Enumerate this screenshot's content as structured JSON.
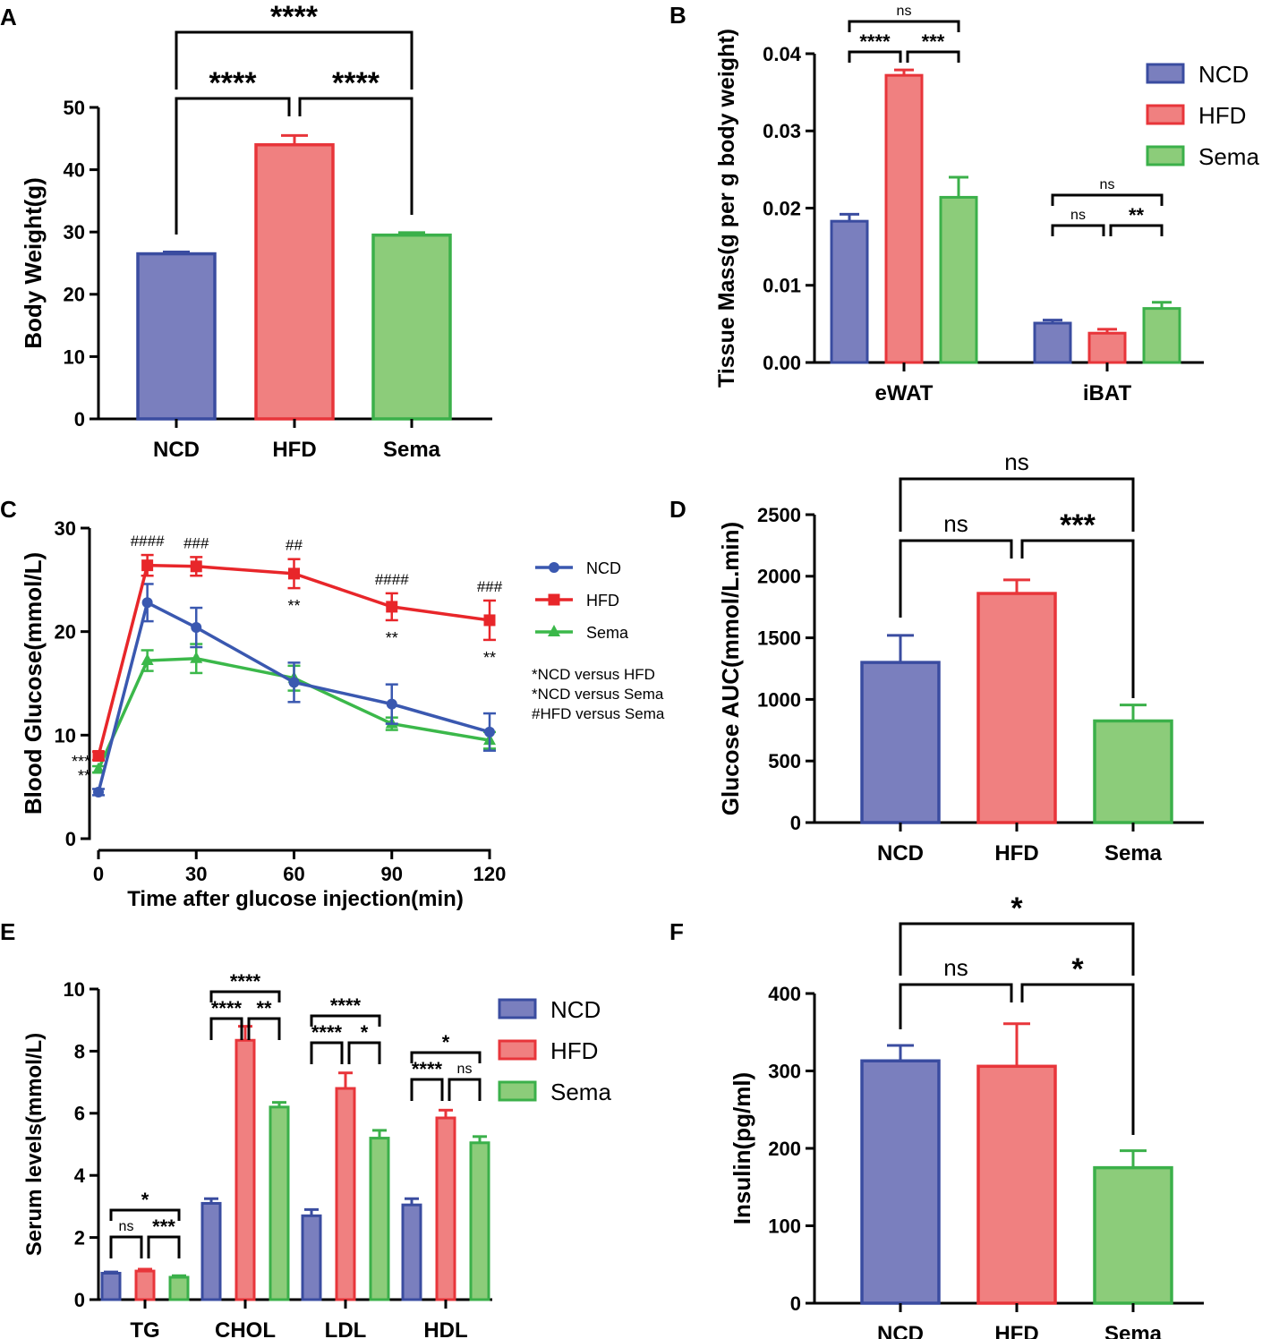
{
  "colors": {
    "NCD": {
      "fill": "#7a7fbe",
      "stroke": "#3a4ca0"
    },
    "HFD": {
      "fill": "#f08080",
      "stroke": "#e8353a"
    },
    "Sema": {
      "fill": "#8ccc7a",
      "stroke": "#3bb04a"
    },
    "line_NCD": "#3a58b0",
    "line_HFD": "#e8262a",
    "line_Sema": "#3bb84a",
    "axis": "#000000"
  },
  "chart_data": [
    {
      "panel": "A",
      "type": "bar",
      "ylabel": "Body Weight(g)",
      "categories": [
        "NCD",
        "HFD",
        "Sema"
      ],
      "values": [
        26.5,
        44.0,
        29.5
      ],
      "errors": [
        0.3,
        1.5,
        0.4
      ],
      "ylim": [
        0,
        50
      ],
      "yticks": [
        "0",
        "10",
        "20",
        "30",
        "40",
        "50"
      ],
      "significance": [
        {
          "from": "NCD",
          "to": "HFD",
          "label": "****",
          "level": 1
        },
        {
          "from": "HFD",
          "to": "Sema",
          "label": "****",
          "level": 1
        },
        {
          "from": "NCD",
          "to": "Sema",
          "label": "****",
          "level": 2
        }
      ]
    },
    {
      "panel": "B",
      "type": "bar",
      "ylabel": "Tissue Mass(g per g body weight)",
      "groups": [
        "eWAT",
        "iBAT"
      ],
      "legend": [
        "NCD",
        "HFD",
        "Sema"
      ],
      "series": [
        {
          "name": "NCD",
          "values": [
            0.0183,
            0.0051
          ],
          "errors": [
            0.0009,
            0.0004
          ]
        },
        {
          "name": "HFD",
          "values": [
            0.0372,
            0.0038
          ],
          "errors": [
            0.0007,
            0.0005
          ]
        },
        {
          "name": "Sema",
          "values": [
            0.0214,
            0.007
          ],
          "errors": [
            0.0026,
            0.0008
          ]
        }
      ],
      "ylim": [
        0,
        0.04
      ],
      "yticks": [
        "0.00",
        "0.01",
        "0.02",
        "0.03",
        "0.04"
      ],
      "significance": [
        {
          "group": "eWAT",
          "from": "NCD",
          "to": "HFD",
          "label": "****",
          "level": 1
        },
        {
          "group": "eWAT",
          "from": "HFD",
          "to": "Sema",
          "label": "***",
          "level": 1
        },
        {
          "group": "eWAT",
          "from": "NCD",
          "to": "Sema",
          "label": "ns",
          "level": 2
        },
        {
          "group": "iBAT",
          "from": "NCD",
          "to": "HFD",
          "label": "ns",
          "level": 1
        },
        {
          "group": "iBAT",
          "from": "HFD",
          "to": "Sema",
          "label": "**",
          "level": 1
        },
        {
          "group": "iBAT",
          "from": "NCD",
          "to": "Sema",
          "label": "ns",
          "level": 2
        }
      ]
    },
    {
      "panel": "C",
      "type": "line",
      "xlabel": "Time after glucose injection(min)",
      "ylabel": "Blood Glucose(mmol/L)",
      "x": [
        0,
        15,
        30,
        60,
        90,
        120
      ],
      "series": [
        {
          "name": "NCD",
          "marker": "circle",
          "values": [
            4.5,
            22.8,
            20.4,
            15.1,
            13.0,
            10.3
          ],
          "errors": [
            0.3,
            1.8,
            1.9,
            1.9,
            1.9,
            1.8
          ]
        },
        {
          "name": "HFD",
          "marker": "square",
          "values": [
            8.0,
            26.4,
            26.3,
            25.6,
            22.4,
            21.1
          ],
          "errors": [
            0.4,
            1.0,
            0.9,
            1.4,
            1.3,
            1.9
          ]
        },
        {
          "name": "Sema",
          "marker": "triangle",
          "values": [
            6.7,
            17.2,
            17.4,
            15.5,
            11.1,
            9.5
          ],
          "errors": [
            0.3,
            1.0,
            1.4,
            1.2,
            0.6,
            0.8
          ]
        }
      ],
      "xlim": [
        0,
        120
      ],
      "xticks": [
        "0",
        "30",
        "60",
        "90",
        "120"
      ],
      "ylim": [
        0,
        30
      ],
      "yticks": [
        "0",
        "10",
        "20",
        "30"
      ],
      "annotations_hash": [
        {
          "x": 15,
          "label": "####"
        },
        {
          "x": 30,
          "label": "###"
        },
        {
          "x": 60,
          "label": "##"
        },
        {
          "x": 90,
          "label": "####"
        },
        {
          "x": 120,
          "label": "###"
        }
      ],
      "annotations_star": [
        {
          "x": 60,
          "label": "**"
        },
        {
          "x": 90,
          "label": "**"
        },
        {
          "x": 120,
          "label": "**"
        }
      ],
      "annotations_start": [
        "***",
        "**"
      ],
      "notes": [
        "*NCD versus HFD",
        "*NCD versus Sema",
        "#HFD versus Sema"
      ]
    },
    {
      "panel": "D",
      "type": "bar",
      "ylabel": "Glucose AUC(mmol/L.min)",
      "categories": [
        "NCD",
        "HFD",
        "Sema"
      ],
      "values": [
        1300,
        1860,
        825
      ],
      "errors": [
        220,
        110,
        130
      ],
      "ylim": [
        0,
        2500
      ],
      "yticks": [
        "0",
        "500",
        "1000",
        "1500",
        "2000",
        "2500"
      ],
      "significance": [
        {
          "from": "NCD",
          "to": "HFD",
          "label": "ns",
          "level": 1
        },
        {
          "from": "HFD",
          "to": "Sema",
          "label": "***",
          "level": 1
        },
        {
          "from": "NCD",
          "to": "Sema",
          "label": "ns",
          "level": 2
        }
      ]
    },
    {
      "panel": "E",
      "type": "bar",
      "ylabel": "Serum levels(mmol/L)",
      "groups": [
        "TG",
        "CHOL",
        "LDL",
        "HDL"
      ],
      "legend": [
        "NCD",
        "HFD",
        "Sema"
      ],
      "series": [
        {
          "name": "NCD",
          "values": [
            0.85,
            3.1,
            2.7,
            3.05
          ],
          "errors": [
            0.04,
            0.15,
            0.2,
            0.2
          ]
        },
        {
          "name": "HFD",
          "values": [
            0.92,
            8.35,
            6.8,
            5.85
          ],
          "errors": [
            0.06,
            0.45,
            0.5,
            0.25
          ]
        },
        {
          "name": "Sema",
          "values": [
            0.72,
            6.2,
            5.2,
            5.05
          ],
          "errors": [
            0.05,
            0.15,
            0.25,
            0.2
          ]
        }
      ],
      "ylim": [
        0,
        10
      ],
      "yticks": [
        "0",
        "2",
        "4",
        "6",
        "8",
        "10"
      ],
      "significance": [
        {
          "group": "TG",
          "from": "NCD",
          "to": "HFD",
          "label": "ns",
          "level": 1
        },
        {
          "group": "TG",
          "from": "HFD",
          "to": "Sema",
          "label": "***",
          "level": 1
        },
        {
          "group": "TG",
          "from": "NCD",
          "to": "Sema",
          "label": "*",
          "level": 2
        },
        {
          "group": "CHOL",
          "from": "NCD",
          "to": "HFD",
          "label": "****",
          "level": 1
        },
        {
          "group": "CHOL",
          "from": "HFD",
          "to": "Sema",
          "label": "**",
          "level": 1
        },
        {
          "group": "CHOL",
          "from": "NCD",
          "to": "Sema",
          "label": "****",
          "level": 2
        },
        {
          "group": "LDL",
          "from": "NCD",
          "to": "HFD",
          "label": "****",
          "level": 1
        },
        {
          "group": "LDL",
          "from": "HFD",
          "to": "Sema",
          "label": "*",
          "level": 1
        },
        {
          "group": "LDL",
          "from": "NCD",
          "to": "Sema",
          "label": "****",
          "level": 2
        },
        {
          "group": "HDL",
          "from": "NCD",
          "to": "HFD",
          "label": "****",
          "level": 1
        },
        {
          "group": "HDL",
          "from": "HFD",
          "to": "Sema",
          "label": "ns",
          "level": 1
        },
        {
          "group": "HDL",
          "from": "NCD",
          "to": "Sema",
          "label": "*",
          "level": 2
        }
      ]
    },
    {
      "panel": "F",
      "type": "bar",
      "ylabel": "Insulin(pg/ml)",
      "categories": [
        "NCD",
        "HFD",
        "Sema"
      ],
      "values": [
        313,
        306,
        175
      ],
      "errors": [
        20,
        55,
        22
      ],
      "ylim": [
        0,
        400
      ],
      "yticks": [
        "0",
        "100",
        "200",
        "300",
        "400"
      ],
      "significance": [
        {
          "from": "NCD",
          "to": "HFD",
          "label": "ns",
          "level": 1
        },
        {
          "from": "HFD",
          "to": "Sema",
          "label": "*",
          "level": 1
        },
        {
          "from": "NCD",
          "to": "Sema",
          "label": "*",
          "level": 2
        }
      ]
    }
  ]
}
